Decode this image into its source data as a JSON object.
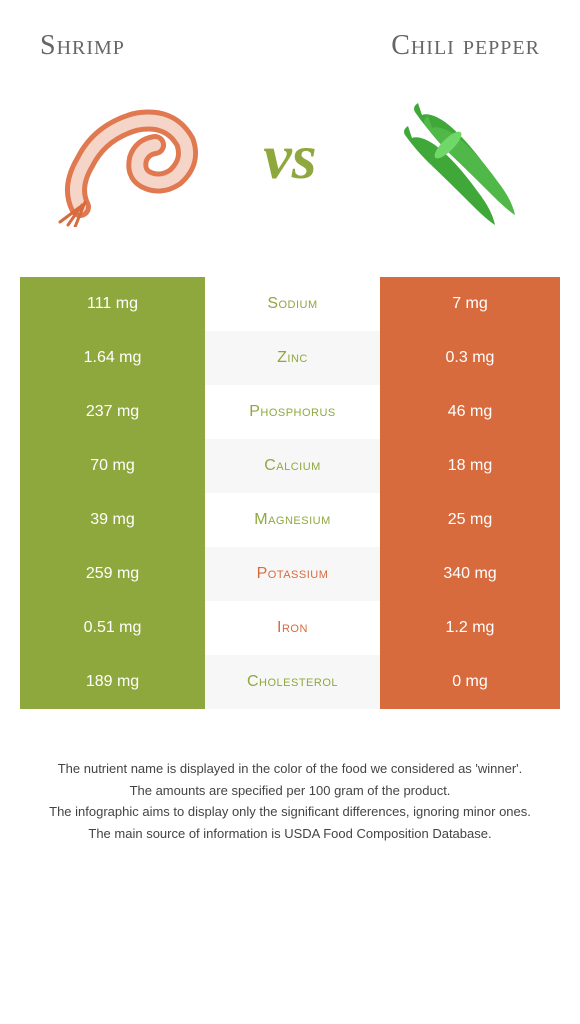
{
  "left": {
    "title": "Shrimp",
    "color": "#8fa83e"
  },
  "right": {
    "title": "Chili pepper",
    "color": "#d76b3e"
  },
  "vs": "vs",
  "rows": [
    {
      "nutrient": "Sodium",
      "left": "111 mg",
      "right": "7 mg",
      "winner": "left"
    },
    {
      "nutrient": "Zinc",
      "left": "1.64 mg",
      "right": "0.3 mg",
      "winner": "left"
    },
    {
      "nutrient": "Phosphorus",
      "left": "237 mg",
      "right": "46 mg",
      "winner": "left"
    },
    {
      "nutrient": "Calcium",
      "left": "70 mg",
      "right": "18 mg",
      "winner": "left"
    },
    {
      "nutrient": "Magnesium",
      "left": "39 mg",
      "right": "25 mg",
      "winner": "left"
    },
    {
      "nutrient": "Potassium",
      "left": "259 mg",
      "right": "340 mg",
      "winner": "right"
    },
    {
      "nutrient": "Iron",
      "left": "0.51 mg",
      "right": "1.2 mg",
      "winner": "right"
    },
    {
      "nutrient": "Cholesterol",
      "left": "189 mg",
      "right": "0 mg",
      "winner": "left"
    }
  ],
  "footer": [
    "The nutrient name is displayed in the color of the food we considered as 'winner'.",
    "The amounts are specified per 100 gram of the product.",
    "The infographic aims to display only the significant differences, ignoring minor ones.",
    "The main source of information is USDA Food Composition Database."
  ]
}
